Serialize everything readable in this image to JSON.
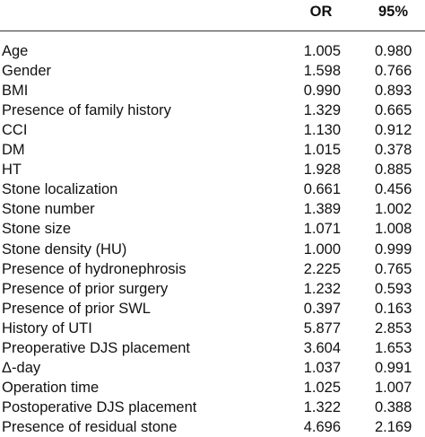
{
  "table": {
    "header": [
      "OR",
      "95%"
    ],
    "rows": [
      [
        "Age",
        "1.005",
        "0.980"
      ],
      [
        "Gender",
        "1.598",
        "0.766"
      ],
      [
        "BMI",
        "0.990",
        "0.893"
      ],
      [
        "Presence of family history",
        "1.329",
        "0.665"
      ],
      [
        "CCI",
        "1.130",
        "0.912"
      ],
      [
        "DM",
        "1.015",
        "0.378"
      ],
      [
        "HT",
        "1.928",
        "0.885"
      ],
      [
        "Stone localization",
        "0.661",
        "0.456"
      ],
      [
        "Stone number",
        "1.389",
        "1.002"
      ],
      [
        "Stone size",
        "1.071",
        "1.008"
      ],
      [
        "Stone density (HU)",
        "1.000",
        "0.999"
      ],
      [
        "Presence of hydronephrosis",
        "2.225",
        "0.765"
      ],
      [
        "Presence of prior surgery",
        "1.232",
        "0.593"
      ],
      [
        "Presence of prior SWL",
        "0.397",
        "0.163"
      ],
      [
        "History of UTI",
        "5.877",
        "2.853"
      ],
      [
        "Preoperative DJS placement",
        "3.604",
        "1.653"
      ],
      [
        "Δ-day",
        "1.037",
        "0.991"
      ],
      [
        "Operation time",
        "1.025",
        "1.007"
      ],
      [
        "Postoperative DJS placement",
        "1.322",
        "0.388"
      ],
      [
        "Presence of residual stone",
        "4.696",
        "2.169"
      ]
    ]
  }
}
